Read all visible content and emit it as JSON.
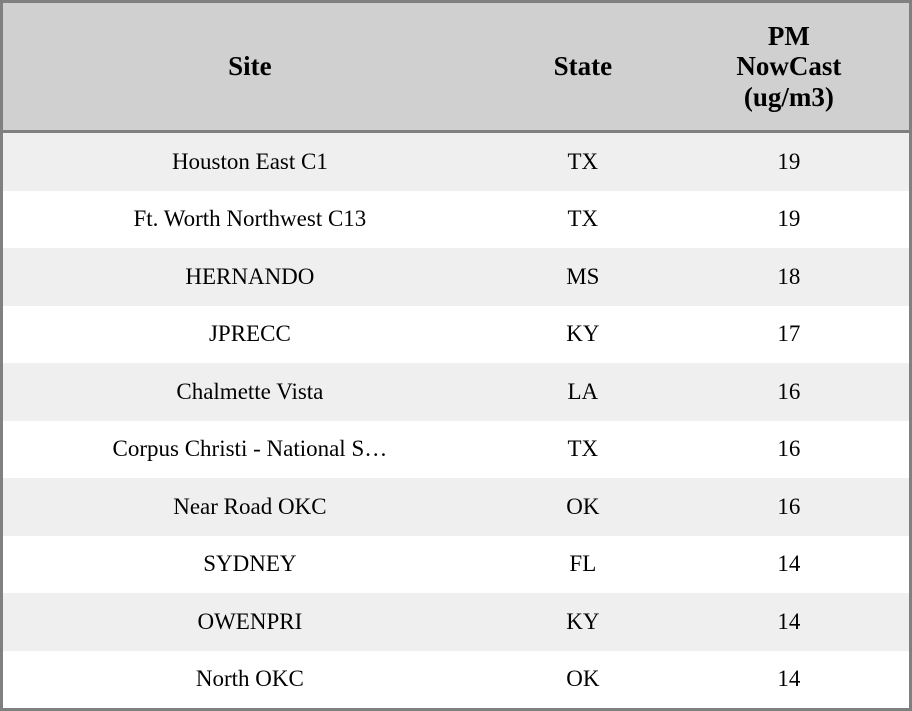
{
  "chart_data": {
    "type": "table",
    "title": "",
    "columns": [
      "Site",
      "State",
      "PM NowCast (ug/m3)"
    ],
    "rows": [
      [
        "Houston East C1",
        "TX",
        19
      ],
      [
        "Ft. Worth Northwest C13",
        "TX",
        19
      ],
      [
        "HERNANDO",
        "MS",
        18
      ],
      [
        "JPRECC",
        "KY",
        17
      ],
      [
        "Chalmette Vista",
        "LA",
        16
      ],
      [
        "Corpus Christi - National S…",
        "TX",
        16
      ],
      [
        "Near Road OKC",
        "OK",
        16
      ],
      [
        "SYDNEY",
        "FL",
        14
      ],
      [
        "OWENPRI",
        "KY",
        14
      ],
      [
        "North OKC",
        "OK",
        14
      ]
    ]
  },
  "header": {
    "site": "Site",
    "state": "State",
    "pm": "PM\nNowCast\n(ug/m3)"
  },
  "colors": {
    "frame_border": "#808080",
    "header_bg": "#d0d0d0",
    "row_stripe_bg": "#efefef",
    "row_bg": "#ffffff",
    "text": "#000000"
  }
}
